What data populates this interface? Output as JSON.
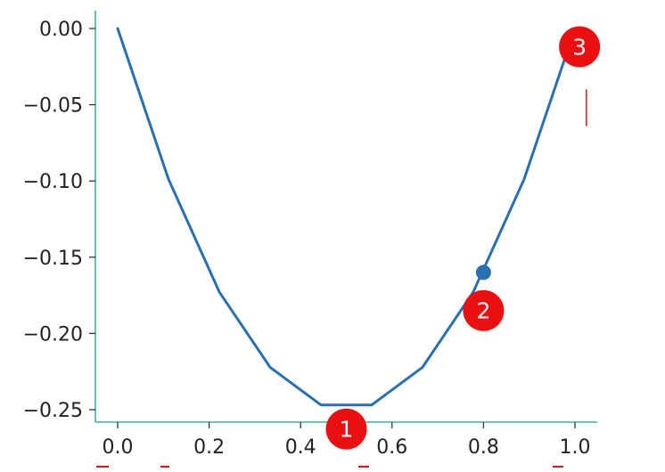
{
  "chart_data": {
    "type": "line",
    "title": "",
    "xlabel": "",
    "ylabel": "",
    "xlim": [
      -0.05,
      1.05
    ],
    "ylim": [
      -0.26,
      0.012
    ],
    "x_ticks": [
      0.0,
      0.2,
      0.4,
      0.6,
      0.8,
      1.0
    ],
    "x_tick_labels": [
      "0.0",
      "0.2",
      "0.4",
      "0.6",
      "0.8",
      "1.0"
    ],
    "y_ticks": [
      0.0,
      -0.05,
      -0.1,
      -0.15,
      -0.2,
      -0.25
    ],
    "y_tick_labels": [
      "0.00",
      "−0.05",
      "−0.10",
      "−0.15",
      "−0.20",
      "−0.25"
    ],
    "grid": false,
    "series": [
      {
        "x": [
          0.0,
          0.1111,
          0.2222,
          0.3333,
          0.4444,
          0.5556,
          0.6667,
          0.7778,
          0.8889,
          1.0
        ],
        "values": [
          0.0,
          -0.0988,
          -0.1728,
          -0.2222,
          -0.2469,
          -0.2469,
          -0.2222,
          -0.1728,
          -0.0988,
          0.0
        ]
      }
    ],
    "highlight_point": {
      "x": 0.8,
      "y": -0.16
    },
    "annotations": [
      {
        "label": "1",
        "x": 0.5,
        "y": -0.2627
      },
      {
        "label": "2",
        "x": 0.8,
        "y": -0.185
      },
      {
        "label": "3",
        "x": 1.01,
        "y": -0.012
      }
    ],
    "colors": {
      "line": "#2a6fb0",
      "axis": "#3bb3a6",
      "annotation": "#e81010",
      "text": "#222222"
    }
  }
}
